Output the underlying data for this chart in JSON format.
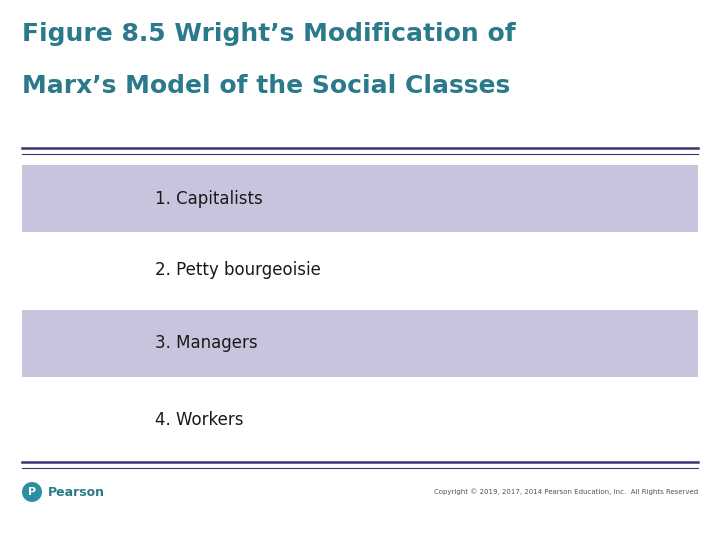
{
  "title_line1": "Figure 8.5 Wright’s Modification of",
  "title_line2": "Marx’s Model of the Social Classes",
  "title_color": "#2B7A8C",
  "bg_color": "#FFFFFF",
  "box_color": "#C9C4DE",
  "items": [
    {
      "label": "1. Capitalists",
      "shaded": true
    },
    {
      "label": "2. Petty bourgeoisie",
      "shaded": false
    },
    {
      "label": "3. Managers",
      "shaded": true
    },
    {
      "label": "4. Workers",
      "shaded": false
    }
  ],
  "separator_color": "#3D3570",
  "text_color": "#1a1a1a",
  "item_fontsize": 12,
  "footer_text": "Copyright © 2019, 2017, 2014 Pearson Education, Inc.  All Rights Reserved",
  "footer_color": "#555555",
  "pearson_text": "Pearson",
  "pearson_color": "#2B7A8C",
  "pearson_icon_color": "#2B8FA0",
  "title_fontsize": 18,
  "fig_width": 7.2,
  "fig_height": 5.4,
  "dpi": 100
}
